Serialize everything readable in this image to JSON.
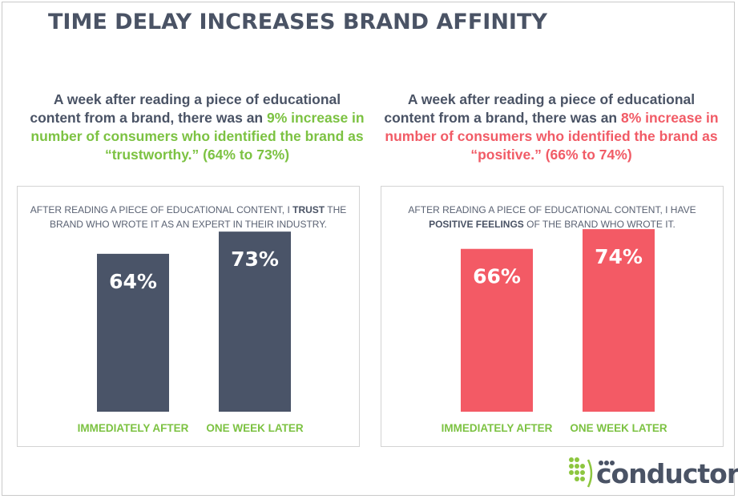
{
  "title": "TIME DELAY INCREASES BRAND AFFINITY",
  "left": {
    "intro_pre": "A week after reading a piece of educational content from a brand, there was an ",
    "intro_highlight": "9% increase in number of consumers who identified the brand as “trustworthy.” (64% to 73%)",
    "question_pre": "AFTER READING A PIECE OF EDUCATIONAL CONTENT, I ",
    "question_bold": "TRUST",
    "question_post": " THE BRAND WHO WROTE IT AS AN EXPERT IN THEIR INDUSTRY."
  },
  "right": {
    "intro_pre": "A week after reading a piece of educational content from a brand, there was an ",
    "intro_highlight": "8% increase in number of consumers who identified the brand as “positive.” (66% to 74%)",
    "question_pre": "AFTER READING A PIECE OF EDUCATIONAL CONTENT, I HAVE ",
    "question_bold": "POSITIVE FEELINGS",
    "question_post": " OF THE BRAND WHO WROTE IT."
  },
  "chart_data": [
    {
      "type": "bar",
      "categories": [
        "IMMEDIATELY AFTER",
        "ONE WEEK LATER"
      ],
      "values": [
        64,
        73
      ],
      "value_labels": [
        "64%",
        "73%"
      ],
      "ylim": [
        0,
        100
      ],
      "bar_color": "#4a5468",
      "label_color": "#7cc242",
      "grid": false
    },
    {
      "type": "bar",
      "categories": [
        "IMMEDIATELY AFTER",
        "ONE WEEK LATER"
      ],
      "values": [
        66,
        74
      ],
      "value_labels": [
        "66%",
        "74%"
      ],
      "ylim": [
        0,
        100
      ],
      "bar_color": "#f35a65",
      "label_color": "#7cc242",
      "grid": false
    }
  ],
  "logo": {
    "text": "conductor",
    "icon": "dot-grid-logo-icon",
    "colors": [
      "#8dc63f",
      "#4a5365"
    ]
  }
}
